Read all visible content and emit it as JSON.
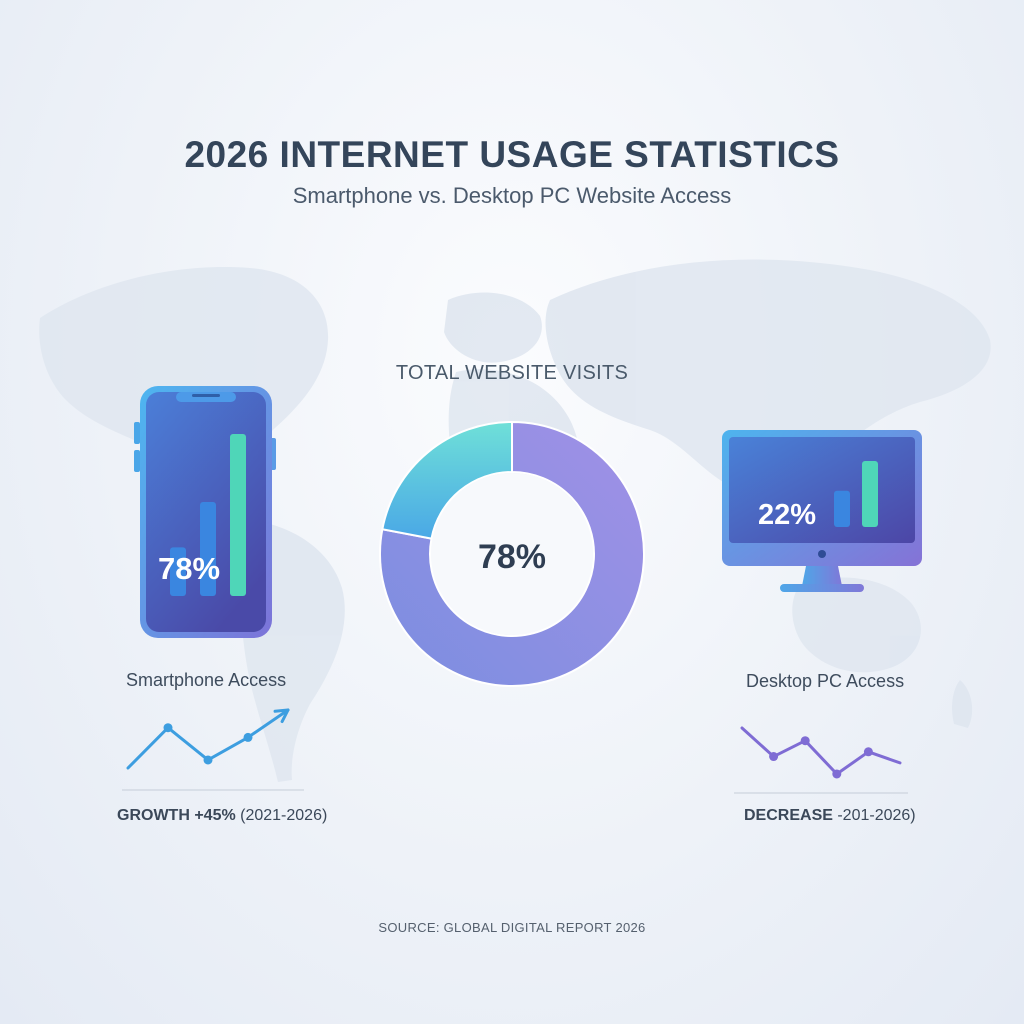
{
  "header": {
    "title": "2026 INTERNET USAGE STATISTICS",
    "subtitle": "Smartphone vs. Desktop PC Website Access"
  },
  "chart_data": [
    {
      "type": "pie",
      "variant": "donut",
      "title": "TOTAL WEBSITE VISITS",
      "center_label": "78%",
      "slices": [
        {
          "label": "Smartphone Access",
          "value": 78,
          "color": "#8b7fe0"
        },
        {
          "label": "Desktop PC Access",
          "value": 22,
          "color": "#5ad4dc"
        }
      ]
    },
    {
      "type": "bar",
      "device": "smartphone",
      "label": "Smartphone Access",
      "display_value": "78%",
      "values": [
        30,
        58,
        100
      ],
      "colors": [
        "#3a86e0",
        "#3a86e0",
        "#4fd6b8"
      ]
    },
    {
      "type": "bar",
      "device": "desktop",
      "label": "Desktop PC Access",
      "display_value": "22%",
      "values": [
        55,
        100
      ],
      "colors": [
        "#3a86e0",
        "#4fd6b8"
      ]
    },
    {
      "type": "line",
      "name": "growth",
      "caption_bold": "GROWTH +45%",
      "caption_rest": " (2021-2026)",
      "values": [
        0,
        25,
        5,
        19,
        36
      ],
      "arrow": true,
      "color": "#3d9ee0"
    },
    {
      "type": "line",
      "name": "decrease",
      "caption_bold": "DECREASE",
      "caption_rest": " -201-2026)",
      "values": [
        58,
        22,
        42,
        0,
        28,
        14
      ],
      "arrow": false,
      "color": "#7f6cd4"
    }
  ],
  "footer": {
    "source": "SOURCE: GLOBAL DIGITAL REPORT 2026"
  }
}
